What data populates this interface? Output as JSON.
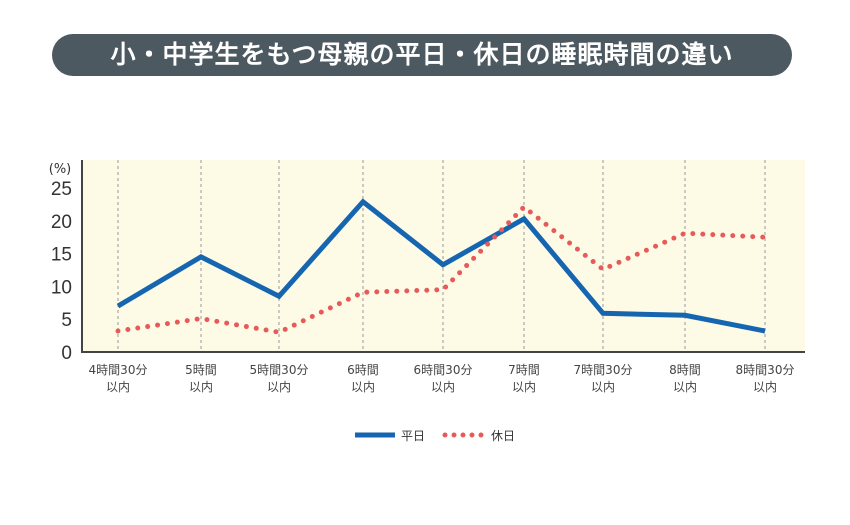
{
  "title": "小・中学生をもつ母親の平日・休日の睡眠時間の違い",
  "chart_data": {
    "type": "line",
    "title": "小・中学生をもつ母親の平日・休日の睡眠時間の違い",
    "ylabel": "(%)",
    "ylim": [
      0,
      25
    ],
    "yticks": [
      0,
      5,
      10,
      15,
      20,
      25
    ],
    "grid": "vertical dashed",
    "legend": "bottom-center",
    "categories": [
      [
        "4時間30分",
        "以内"
      ],
      [
        "5時間",
        "以内"
      ],
      [
        "5時間30分",
        "以内"
      ],
      [
        "6時間",
        "以内"
      ],
      [
        "6時間30分",
        "以内"
      ],
      [
        "7時間",
        "以内"
      ],
      [
        "7時間30分",
        "以内"
      ],
      [
        "8時間",
        "以内"
      ],
      [
        "8時間30分",
        "以内"
      ]
    ],
    "series": [
      {
        "name": "平日",
        "style": "solid",
        "color": "#1565b0",
        "values": [
          7.0,
          14.5,
          8.5,
          22.9,
          13.3,
          20.3,
          5.9,
          5.6,
          3.2
        ]
      },
      {
        "name": "休日",
        "style": "dotted",
        "color": "#e85a5a",
        "values": [
          3.2,
          5.1,
          3.0,
          9.1,
          9.5,
          22.1,
          12.6,
          18.1,
          17.5
        ]
      }
    ],
    "background": "#fdfbe6"
  }
}
